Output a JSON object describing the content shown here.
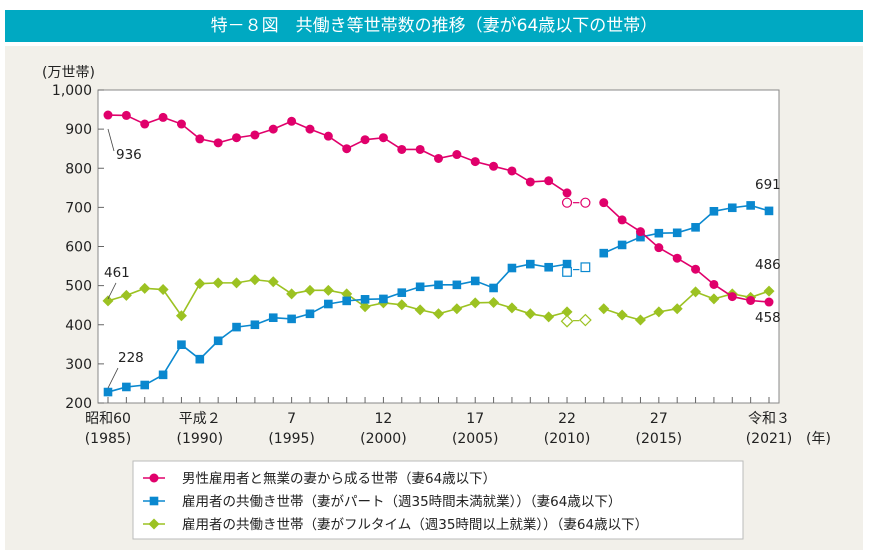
{
  "title": "特－８図　共働き等世帯数の推移（妻が64歳以下の世帯）",
  "chart_data": {
    "type": "line",
    "title": "特－８図　共働き等世帯数の推移（妻が64歳以下の世帯）",
    "ylabel": "(万世帯)",
    "xlabel": "(年)",
    "ylim": [
      200,
      1000
    ],
    "yticks": [
      "200",
      "300",
      "400",
      "500",
      "600",
      "700",
      "800",
      "900",
      "1,000"
    ],
    "ytick_values": [
      200,
      300,
      400,
      500,
      600,
      700,
      800,
      900,
      1000
    ],
    "xlim": [
      1985,
      2021
    ],
    "xticks": [
      {
        "year": 1985,
        "era": "昭和60",
        "western": "(1985)"
      },
      {
        "year": 1990,
        "era": "平成２",
        "western": "(1990)"
      },
      {
        "year": 1995,
        "era": "7",
        "western": "(1995)"
      },
      {
        "year": 2000,
        "era": "12",
        "western": "(2000)"
      },
      {
        "year": 2005,
        "era": "17",
        "western": "(2005)"
      },
      {
        "year": 2010,
        "era": "22",
        "western": "(2010)"
      },
      {
        "year": 2015,
        "era": "27",
        "western": "(2015)"
      },
      {
        "year": 2021,
        "era": "令和３",
        "western": "(2021)"
      }
    ],
    "x": [
      1985,
      1986,
      1987,
      1988,
      1989,
      1990,
      1991,
      1992,
      1993,
      1994,
      1995,
      1996,
      1997,
      1998,
      1999,
      2000,
      2001,
      2002,
      2003,
      2004,
      2005,
      2006,
      2007,
      2008,
      2009,
      2010,
      2011,
      2012,
      2013,
      2014,
      2015,
      2016,
      2017,
      2018,
      2019,
      2020,
      2021
    ],
    "grid": false,
    "legend_position": "bottom",
    "series": [
      {
        "name": "男性雇用者と無業の妻から成る世帯（妻64歳以下）",
        "color": "#e0006b",
        "marker": "circle",
        "values": [
          936,
          935,
          913,
          930,
          913,
          875,
          865,
          878,
          885,
          900,
          920,
          900,
          882,
          850,
          873,
          878,
          848,
          848,
          825,
          835,
          817,
          805,
          793,
          765,
          768,
          737,
          null,
          712,
          668,
          638,
          597,
          570,
          542,
          503,
          472,
          462,
          458
        ],
        "estimates": {
          "x": [
            2010,
            2011
          ],
          "values": [
            712,
            712
          ]
        },
        "labels": [
          {
            "year": 1985,
            "text": "936"
          },
          {
            "year": 2021,
            "text": "458"
          }
        ]
      },
      {
        "name": "雇用者の共働き世帯（妻がパート（週35時間未満就業））（妻64歳以下）",
        "color": "#0a88cf",
        "marker": "square",
        "values": [
          228,
          241,
          246,
          272,
          349,
          312,
          359,
          394,
          400,
          418,
          415,
          428,
          453,
          461,
          465,
          466,
          482,
          497,
          502,
          502,
          512,
          494,
          545,
          555,
          547,
          555,
          null,
          583,
          604,
          624,
          634,
          635,
          649,
          690,
          699,
          705,
          691
        ],
        "estimates": {
          "x": [
            2010,
            2011
          ],
          "values": [
            535,
            547
          ]
        },
        "labels": [
          {
            "year": 1985,
            "text": "228"
          },
          {
            "year": 2021,
            "text": "691"
          }
        ]
      },
      {
        "name": "雇用者の共働き世帯（妻がフルタイム（週35時間以上就業））（妻64歳以下）",
        "color": "#9cc222",
        "marker": "diamond",
        "values": [
          461,
          475,
          493,
          490,
          423,
          505,
          507,
          507,
          515,
          510,
          479,
          488,
          488,
          479,
          446,
          456,
          451,
          438,
          428,
          441,
          456,
          457,
          443,
          428,
          420,
          433,
          null,
          441,
          425,
          412,
          433,
          441,
          484,
          466,
          479,
          470,
          486
        ],
        "estimates": {
          "x": [
            2010,
            2011
          ],
          "values": [
            409,
            412
          ]
        },
        "labels": [
          {
            "year": 1985,
            "text": "461"
          },
          {
            "year": 2021,
            "text": "486"
          }
        ]
      }
    ]
  }
}
